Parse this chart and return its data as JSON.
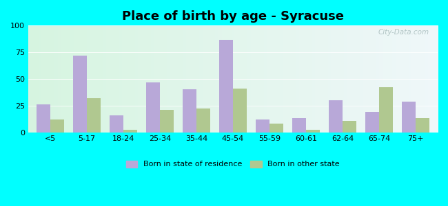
{
  "title": "Place of birth by age - Syracuse",
  "categories": [
    "<5",
    "5-17",
    "18-24",
    "25-34",
    "35-44",
    "45-54",
    "55-59",
    "60-61",
    "62-64",
    "65-74",
    "75+"
  ],
  "state_of_residence": [
    26,
    72,
    16,
    47,
    40,
    87,
    12,
    13,
    30,
    19,
    29
  ],
  "other_state": [
    12,
    32,
    2,
    21,
    22,
    41,
    8,
    2,
    11,
    42,
    13
  ],
  "color_residence": "#b8a8d8",
  "color_other": "#b0c890",
  "ylim": [
    0,
    100
  ],
  "yticks": [
    0,
    25,
    50,
    75,
    100
  ],
  "legend_residence": "Born in state of residence",
  "legend_other": "Born in other state",
  "outer_bg": "#00ffff",
  "bar_width": 0.38,
  "title_fontsize": 13,
  "tick_fontsize": 8
}
